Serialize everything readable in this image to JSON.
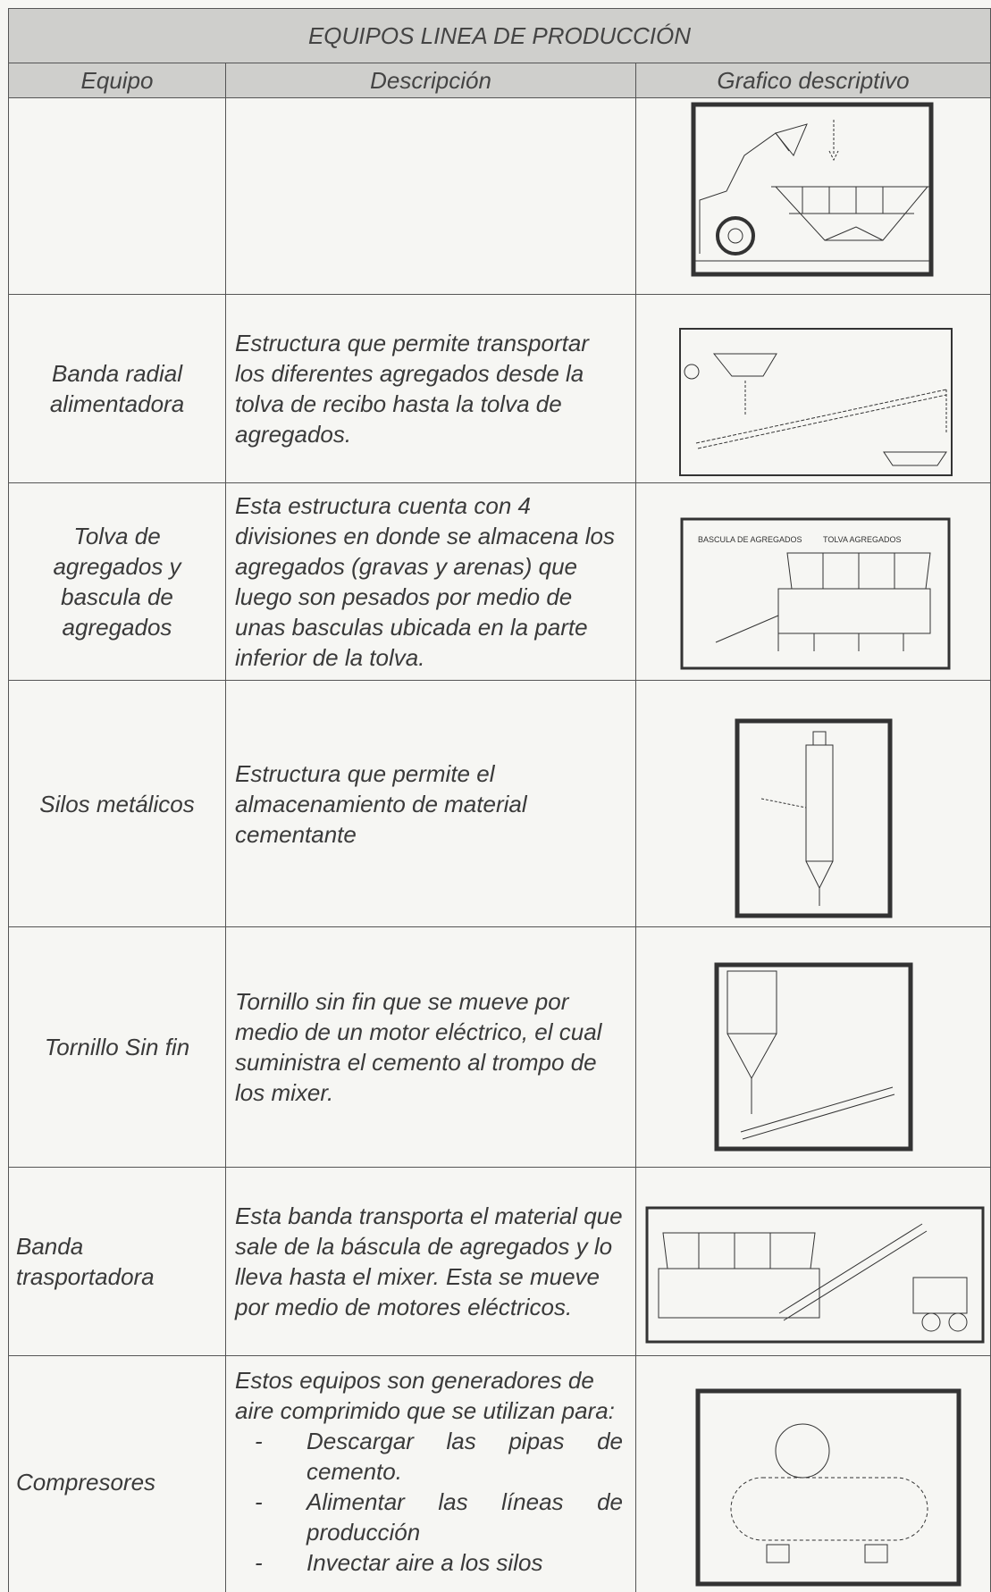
{
  "header": {
    "title": "EQUIPOS LINEA DE PRODUCCIÓN"
  },
  "table": {
    "columns": [
      "Equipo",
      "Descripción",
      "Grafico descriptivo"
    ],
    "rows": [
      {
        "equipo": "Banda radial alimentadora",
        "descripcion": "Estructura que permite transportar los diferentes agregados desde la tolva de recibo hasta la tolva de agregados."
      },
      {
        "equipo": "Tolva de agregados y bascula de agregados",
        "descripcion": "Esta estructura cuenta con 4 divisiones en donde se almacena los agregados (gravas y arenas) que luego son pesados por medio de unas basculas ubicada en la parte inferior de la tolva."
      },
      {
        "equipo": "Silos metálicos",
        "descripcion": "Estructura que permite el almacenamiento de material cementante"
      },
      {
        "equipo": "Tornillo Sin fin",
        "descripcion": "Tornillo sin fin que se mueve por medio de un motor eléctrico, el cual suministra el cemento al trompo de los mixer."
      },
      {
        "equipo": "Banda trasportadora",
        "descripcion": "Esta banda transporta el material que sale de la báscula de agregados y lo lleva hasta el mixer. Esta se mueve por medio de motores eléctricos."
      },
      {
        "equipo": "Compresores",
        "descripcion": "Estos equipos son generadores de aire comprimido que se utilizan para:",
        "items": [
          "Descargar las pipas de cemento.",
          "Alimentar las líneas de producción",
          "Invectar aire a los silos"
        ]
      }
    ]
  },
  "figures": {
    "tolva_label": "TOLVA AGREGADOS",
    "bascula_label": "BASCULA DE AGREGADOS"
  }
}
